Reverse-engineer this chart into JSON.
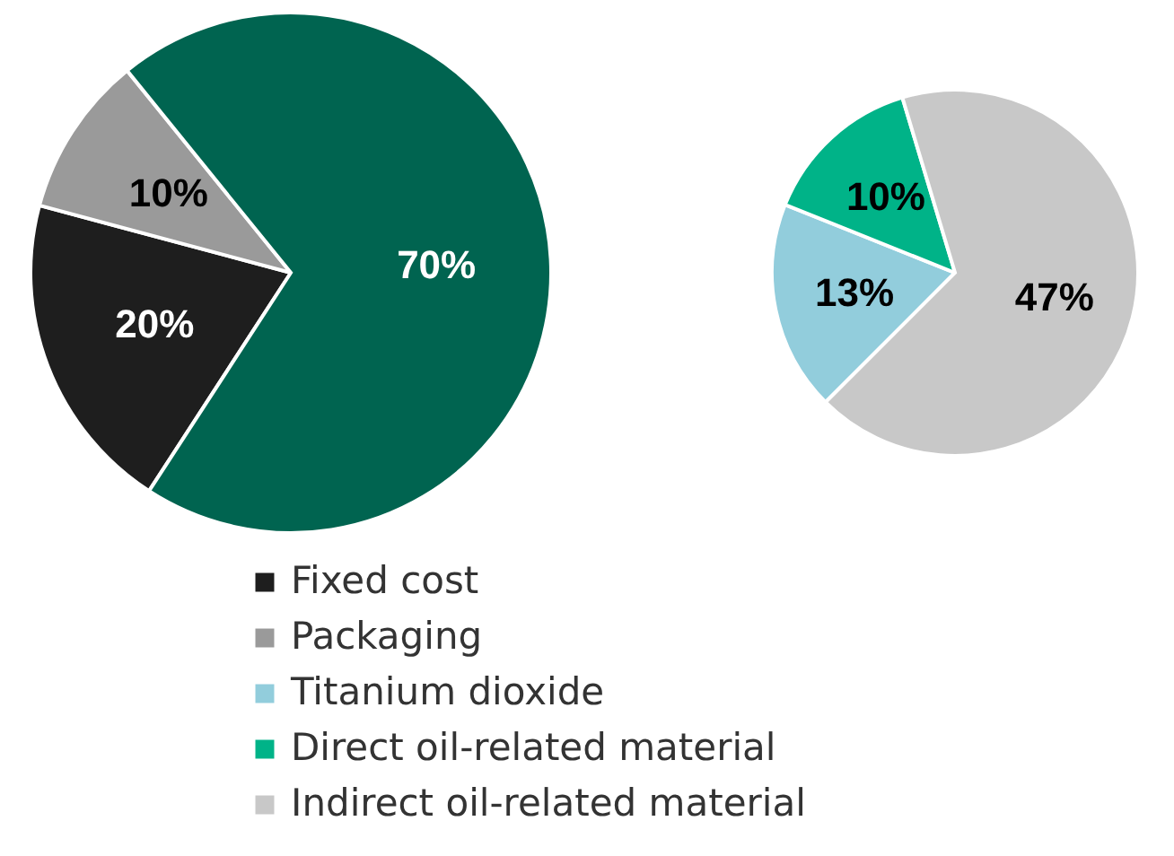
{
  "chart_data": [
    {
      "type": "pie",
      "categories": [
        "Fixed cost",
        "Packaging",
        null
      ],
      "values": [
        20,
        10,
        70
      ],
      "colors": [
        "#1e1e1e",
        "#9a9a9a",
        "#006450"
      ],
      "value_labels": [
        "20%",
        "10%",
        "70%"
      ],
      "legend": "bottom"
    },
    {
      "type": "pie",
      "categories": [
        "Titanium dioxide",
        "Direct oil-related material",
        "Indirect oil-related material"
      ],
      "values": [
        13,
        10,
        47
      ],
      "colors": [
        "#92cddc",
        "#00b388",
        "#c8c8c8"
      ],
      "value_labels": [
        "13%",
        "10%",
        "47%"
      ],
      "legend": "bottom"
    }
  ]
}
